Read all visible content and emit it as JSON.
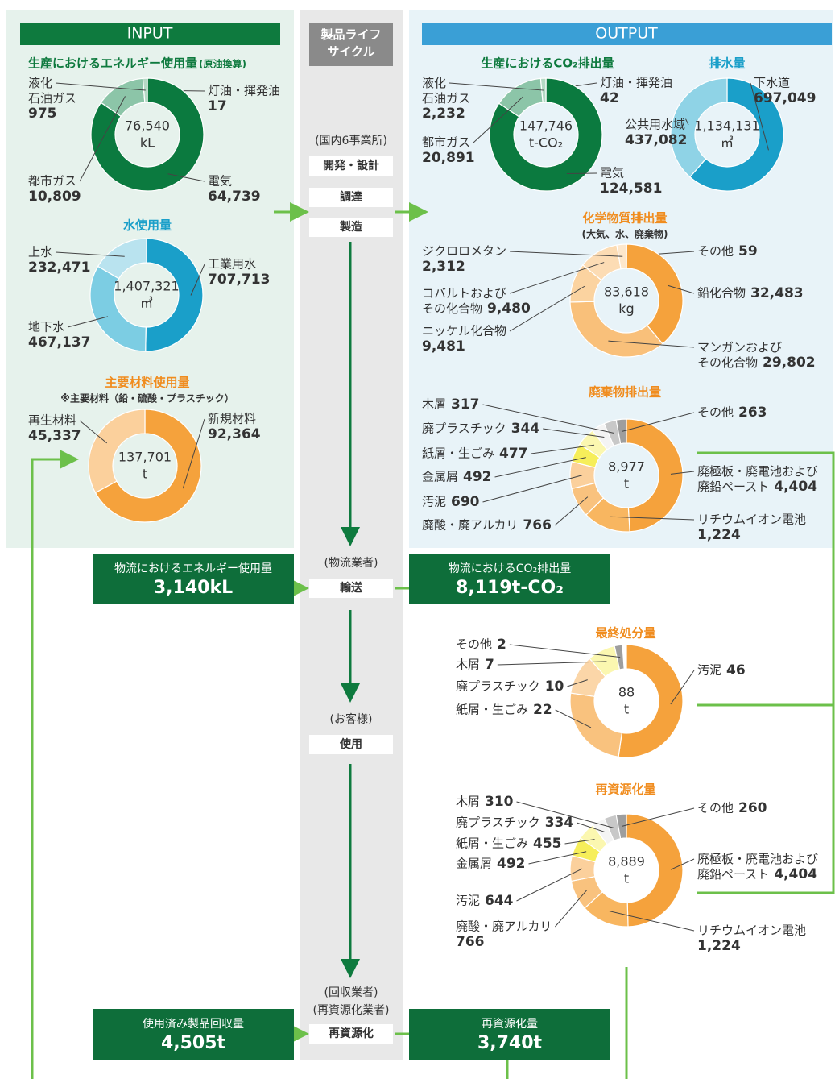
{
  "columns": {
    "input": "INPUT",
    "output": "OUTPUT",
    "lifecycle": "製品ライフ\nサイクル"
  },
  "lifecycle_steps": [
    {
      "text": "(国内6事業所)",
      "boxed": false
    },
    {
      "text": "開発・設計",
      "boxed": true
    },
    {
      "text": "調達",
      "boxed": true
    },
    {
      "text": "製造",
      "boxed": true
    },
    {
      "text": "(物流業者)",
      "boxed": false
    },
    {
      "text": "輸送",
      "boxed": true
    },
    {
      "text": "(お客様)",
      "boxed": false
    },
    {
      "text": "使用",
      "boxed": true
    },
    {
      "text": "(回収業者)",
      "boxed": false
    },
    {
      "text": "(再資源化業者)",
      "boxed": false
    },
    {
      "text": "再資源化",
      "boxed": true
    }
  ],
  "boxes": [
    {
      "title": "物流におけるエネルギー使用量",
      "value_label": "3,140kL"
    },
    {
      "title": "物流におけるCO₂排出量",
      "value_label": "8,119t-CO₂"
    },
    {
      "title": "使用済み製品回収量",
      "value_label": "4,505t"
    },
    {
      "title": "再資源化量",
      "value_label": "3,740t"
    }
  ],
  "donuts": [
    {
      "title": "生産におけるエネルギー使用量",
      "note": "(原油換算)",
      "total": 76540,
      "total_label": "76,540",
      "unit": "kL",
      "segments": [
        {
          "name": "灯油・揮発油",
          "value": 17,
          "color": "#d6ebdf"
        },
        {
          "name": "電気",
          "value": 64739,
          "value_label": "64,739",
          "color": "#0b7a3f"
        },
        {
          "name": "都市ガス",
          "value": 10809,
          "value_label": "10,809",
          "color": "#8cc5a8"
        },
        {
          "name": "液化\n石油ガス",
          "value": 975,
          "color": "#b5d9c5"
        }
      ]
    },
    {
      "title": "水使用量",
      "total": 1407321,
      "total_label": "1,407,321",
      "unit": "㎥",
      "segments": [
        {
          "name": "工業用水",
          "value": 707713,
          "value_label": "707,713",
          "color": "#1a9fc9"
        },
        {
          "name": "地下水",
          "value": 467137,
          "value_label": "467,137",
          "color": "#7ccde3"
        },
        {
          "name": "上水",
          "value": 232471,
          "value_label": "232,471",
          "color": "#b9e3ef"
        }
      ]
    },
    {
      "title": "主要材料使用量",
      "note": "※主要材料（鉛・硫酸・プラスチック）",
      "total": 137701,
      "total_label": "137,701",
      "unit": "t",
      "segments": [
        {
          "name": "新規材料",
          "value": 92364,
          "value_label": "92,364",
          "color": "#f5a23c"
        },
        {
          "name": "再生材料",
          "value": 45337,
          "value_label": "45,337",
          "color": "#fbd09c"
        }
      ]
    },
    {
      "title": "生産におけるCO₂排出量",
      "total": 147746,
      "total_label": "147,746",
      "unit": "t-CO₂",
      "segments": [
        {
          "name": "灯油・揮発油",
          "value": 42,
          "color": "#d6ebdf"
        },
        {
          "name": "電気",
          "value": 124581,
          "value_label": "124,581",
          "color": "#0b7a3f"
        },
        {
          "name": "都市ガス",
          "value": 20891,
          "value_label": "20,891",
          "color": "#8cc5a8"
        },
        {
          "name": "液化\n石油ガス",
          "value": 2232,
          "value_label": "2,232",
          "color": "#b5d9c5"
        }
      ]
    },
    {
      "title": "排水量",
      "total": 1134131,
      "total_label": "1,134,131",
      "unit": "㎥",
      "segments": [
        {
          "name": "下水道",
          "value": 697049,
          "value_label": "697,049",
          "color": "#1a9fc9"
        },
        {
          "name": "公共用水域",
          "value": 437082,
          "value_label": "437,082",
          "color": "#8fd3e6"
        }
      ]
    },
    {
      "title": "化学物質排出量",
      "note": "(大気、水、廃棄物)",
      "total": 83618,
      "total_label": "83,618",
      "unit": "kg",
      "segments": [
        {
          "name": "その他",
          "value": 59,
          "color": "#f7e94a"
        },
        {
          "name": "鉛化合物",
          "value": 32483,
          "value_label": "32,483",
          "color": "#f5a23c"
        },
        {
          "name": "マンガンおよび\nその化合物",
          "value": 29802,
          "value_label": "29,802",
          "color": "#f9c07a"
        },
        {
          "name": "ニッケル化合物",
          "value": 9481,
          "value_label": "9,481",
          "color": "#fbd3a0"
        },
        {
          "name": "コバルトおよび\nその化合物",
          "value": 9480,
          "value_label": "9,480",
          "color": "#fcdcb4"
        },
        {
          "name": "ジクロロメタン",
          "value": 2312,
          "value_label": "2,312",
          "color": "#fde7cc"
        }
      ]
    },
    {
      "title": "廃棄物排出量",
      "total": 8977,
      "total_label": "8,977",
      "unit": "t",
      "segments": [
        {
          "name": "廃極板・廃電池および\n廃鉛ペースト",
          "value": 4404,
          "value_label": "4,404",
          "color": "#f5a23c"
        },
        {
          "name": "リチウムイオン電池",
          "value": 1224,
          "value_label": "1,224",
          "color": "#f8b660"
        },
        {
          "name": "廃酸・廃アルカリ",
          "value": 766,
          "color": "#f9c27e"
        },
        {
          "name": "汚泥",
          "value": 690,
          "color": "#fbd09c"
        },
        {
          "name": "金属屑",
          "value": 492,
          "color": "#f6ee5a"
        },
        {
          "name": "紙屑・生ごみ",
          "value": 477,
          "color": "#fbf7b0"
        },
        {
          "name": "廃プラスチック",
          "value": 344,
          "color": "#f4f4f4"
        },
        {
          "name": "木屑",
          "value": 317,
          "color": "#c8c8c8"
        },
        {
          "name": "その他",
          "value": 263,
          "color": "#9e9e9e"
        }
      ]
    },
    {
      "title": "最終処分量",
      "total": 88,
      "unit": "t",
      "segments": [
        {
          "name": "汚泥",
          "value": 46,
          "color": "#f5a23c"
        },
        {
          "name": "紙屑・生ごみ",
          "value": 22,
          "color": "#f9c27e"
        },
        {
          "name": "廃プラスチック",
          "value": 10,
          "color": "#fbd6a8"
        },
        {
          "name": "木屑",
          "value": 7,
          "color": "#fbf7b0"
        },
        {
          "name": "その他",
          "value": 2,
          "color": "#9e9e9e"
        }
      ]
    },
    {
      "title": "再資源化量",
      "total": 8889,
      "total_label": "8,889",
      "unit": "t",
      "segments": [
        {
          "name": "廃極板・廃電池および\n廃鉛ペースト",
          "value": 4404,
          "value_label": "4,404",
          "color": "#f5a23c"
        },
        {
          "name": "リチウムイオン電池",
          "value": 1224,
          "value_label": "1,224",
          "color": "#f8b660"
        },
        {
          "name": "廃酸・廃アルカリ",
          "value": 766,
          "color": "#f9c27e"
        },
        {
          "name": "汚泥",
          "value": 644,
          "color": "#fbd09c"
        },
        {
          "name": "金属屑",
          "value": 492,
          "color": "#f6ee5a"
        },
        {
          "name": "紙屑・生ごみ",
          "value": 455,
          "color": "#fbf7b0"
        },
        {
          "name": "廃プラスチック",
          "value": 334,
          "color": "#f4f4f4"
        },
        {
          "name": "木屑",
          "value": 310,
          "color": "#c8c8c8"
        },
        {
          "name": "その他",
          "value": 260,
          "color": "#9e9e9e"
        }
      ]
    }
  ]
}
